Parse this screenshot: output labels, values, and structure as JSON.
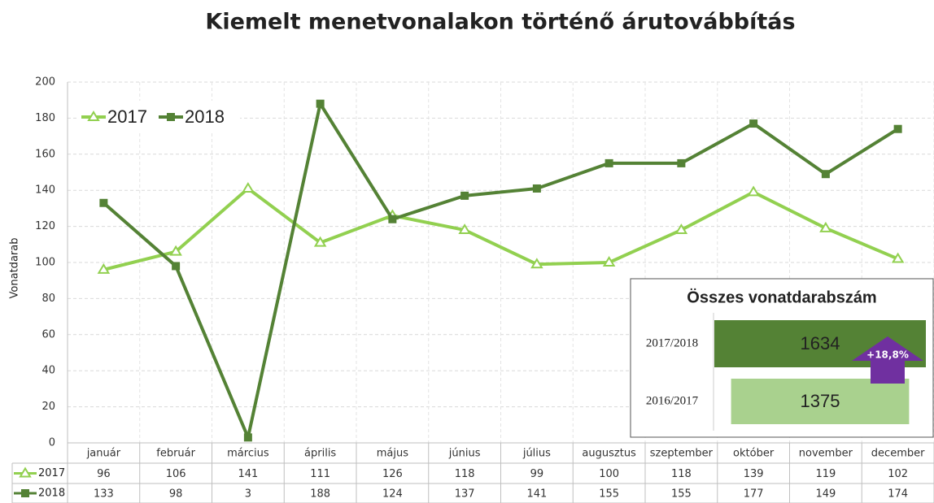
{
  "chart_data": {
    "type": "line",
    "title": "Kiemelt menetvonalakon történő árutovábbítás",
    "ylabel": "Vonatdarab",
    "categories": [
      "január",
      "február",
      "március",
      "április",
      "május",
      "június",
      "július",
      "augusztus",
      "szeptember",
      "október",
      "november",
      "december"
    ],
    "series": [
      {
        "name": "2017",
        "color": "#92d050",
        "marker": "triangle",
        "values": [
          96,
          106,
          141,
          111,
          126,
          118,
          99,
          100,
          118,
          139,
          119,
          102
        ]
      },
      {
        "name": "2018",
        "color": "#548235",
        "marker": "square",
        "values": [
          133,
          98,
          3,
          188,
          124,
          137,
          141,
          155,
          155,
          177,
          149,
          174
        ]
      }
    ],
    "ylim": [
      0,
      200
    ],
    "yticks": [
      0,
      20,
      40,
      60,
      80,
      100,
      120,
      140,
      160,
      180,
      200
    ],
    "grid": true,
    "legend": "top-left",
    "data_table": true,
    "inset": {
      "title": "Összes vonatdarabszám",
      "rows": [
        {
          "label": "2017/2018",
          "value": 1634,
          "color": "#548235"
        },
        {
          "label": "2016/2017",
          "value": 1375,
          "color": "#a9d18e"
        }
      ],
      "change_label": "+18,8%",
      "change_color": "#7030a0"
    }
  }
}
